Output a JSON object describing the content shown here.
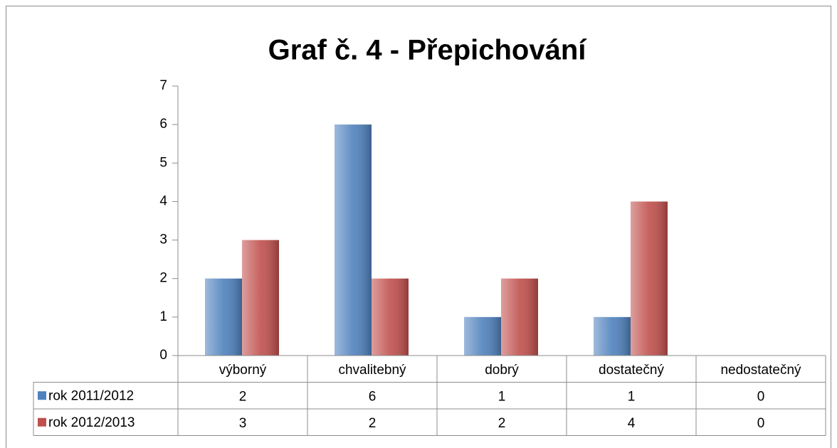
{
  "chart_data": {
    "type": "bar",
    "title": "Graf č. 4 - Přepichování",
    "categories": [
      "výborný",
      "chvalitebný",
      "dobrý",
      "dostatečný",
      "nedostatečný"
    ],
    "series": [
      {
        "name": "rok 2011/2012",
        "color": "#4f81bd",
        "values": [
          2,
          6,
          1,
          1,
          0
        ]
      },
      {
        "name": "rok 2012/2013",
        "color": "#c0504d",
        "values": [
          3,
          2,
          2,
          4,
          0
        ]
      }
    ],
    "ylim": [
      0,
      7
    ],
    "yticks": [
      0,
      1,
      2,
      3,
      4,
      5,
      6,
      7
    ],
    "grid": false,
    "data_table": true
  }
}
